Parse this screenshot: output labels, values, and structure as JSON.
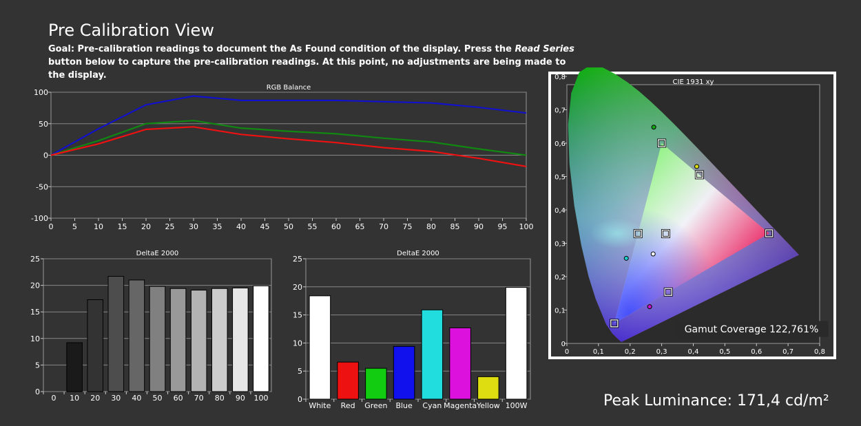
{
  "page": {
    "title": "Pre Calibration View",
    "goal_prefix": "Goal: Pre-calibration readings to document the As Found condition of the display. Press the ",
    "goal_button": "Read Series",
    "goal_suffix": " button below to capture the pre-calibration readings. At this point, no adjustments are being made to the display.",
    "peak_luminance_label": "Peak Luminance: 171,4 cd/m²"
  },
  "colors": {
    "red": "#ee1111",
    "green": "#118811",
    "blue": "#1111cc",
    "grid": "#888888",
    "plot_bg": "#333333"
  },
  "chart_data": [
    {
      "id": "rgb",
      "type": "line",
      "title": "RGB Balance",
      "x": [
        0,
        10,
        20,
        30,
        40,
        50,
        60,
        70,
        80,
        90,
        100
      ],
      "xticks": [
        0,
        5,
        10,
        15,
        20,
        25,
        30,
        35,
        40,
        45,
        50,
        55,
        60,
        65,
        70,
        75,
        80,
        85,
        90,
        95,
        100
      ],
      "xlim": [
        0,
        100
      ],
      "ylim": [
        -100,
        100
      ],
      "yticks": [
        -100,
        -50,
        0,
        50,
        100
      ],
      "grid": true,
      "series": [
        {
          "color": "#1111cc",
          "values": [
            0,
            42,
            80,
            94,
            87,
            87,
            87,
            85,
            83,
            76,
            67
          ]
        },
        {
          "color": "#118811",
          "values": [
            0,
            23,
            50,
            55,
            43,
            38,
            34,
            27,
            21,
            10,
            0
          ]
        },
        {
          "color": "#ee1111",
          "values": [
            0,
            18,
            41,
            45,
            33,
            26,
            20,
            12,
            6,
            -5,
            -18
          ]
        }
      ]
    },
    {
      "id": "grayscale",
      "type": "bar",
      "title": "DeltaE 2000",
      "categories": [
        "0",
        "10",
        "20",
        "30",
        "40",
        "50",
        "60",
        "70",
        "80",
        "90",
        "100"
      ],
      "values": [
        0,
        9.2,
        17.3,
        21.7,
        21.0,
        19.8,
        19.4,
        19.1,
        19.4,
        19.5,
        19.9
      ],
      "ylim": [
        0,
        25
      ],
      "yticks": [
        0,
        5,
        10,
        15,
        20,
        25
      ],
      "bar_colors": [
        "#000000",
        "#1a1a1a",
        "#333333",
        "#4d4d4d",
        "#666666",
        "#808080",
        "#999999",
        "#b3b3b3",
        "#cccccc",
        "#e6e6e6",
        "#ffffff"
      ]
    },
    {
      "id": "colors",
      "type": "bar",
      "title": "DeltaE 2000",
      "categories": [
        "White",
        "Red",
        "Green",
        "Blue",
        "Cyan",
        "Magenta",
        "Yellow",
        "100W"
      ],
      "values": [
        18.4,
        6.6,
        5.5,
        9.4,
        15.9,
        12.7,
        4.0,
        19.9
      ],
      "ylim": [
        0,
        25
      ],
      "yticks": [
        0,
        5,
        10,
        15,
        20,
        25
      ],
      "bar_colors": [
        "#ffffff",
        "#ee1111",
        "#11cc11",
        "#1111ee",
        "#22dddd",
        "#dd11dd",
        "#dddd11",
        "#ffffff"
      ]
    },
    {
      "id": "cie",
      "type": "scatter",
      "title": "CIE 1931 xy",
      "xlim": [
        0,
        0.8
      ],
      "ylim": [
        0,
        0.8
      ],
      "xticks": [
        "0",
        "0,1",
        "0,2",
        "0,3",
        "0,4",
        "0,5",
        "0,6",
        "0,7",
        "0,8"
      ],
      "yticks": [
        "0",
        "0,1",
        "0,2",
        "0,3",
        "0,4",
        "0,5",
        "0,6",
        "0,7",
        "0,8"
      ],
      "gamut_coverage_label": "Gamut Coverage 122,761%",
      "gamut_triangle": {
        "red": [
          0.64,
          0.33
        ],
        "green": [
          0.3,
          0.6
        ],
        "blue": [
          0.15,
          0.06
        ]
      },
      "targets": [
        [
          0.64,
          0.33
        ],
        [
          0.3,
          0.6
        ],
        [
          0.15,
          0.06
        ],
        [
          0.225,
          0.329
        ],
        [
          0.3209,
          0.1541
        ],
        [
          0.4193,
          0.5053
        ],
        [
          0.3127,
          0.329
        ]
      ],
      "measured": [
        {
          "x": 0.273,
          "y": 0.268,
          "color": "#ffffff"
        },
        {
          "x": 0.411,
          "y": 0.53,
          "color": "#dddd11"
        },
        {
          "x": 0.275,
          "y": 0.648,
          "color": "#11aa11"
        },
        {
          "x": 0.188,
          "y": 0.255,
          "color": "#22cccc"
        },
        {
          "x": 0.262,
          "y": 0.11,
          "color": "#cc11cc"
        }
      ]
    }
  ]
}
